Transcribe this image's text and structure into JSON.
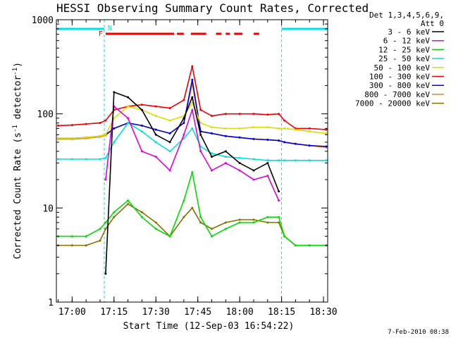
{
  "chart_data": {
    "type": "line",
    "title": "HESSI Observing Summary Count Rates, Corrected",
    "xlabel": "Start Time (12-Sep-03 16:54:22)",
    "ylabel": "Corrected Count Rate (s-1 detector-1)",
    "y_scale": "log",
    "ylim": [
      1,
      1000
    ],
    "x_range": [
      "16:54:22",
      "18:31:30"
    ],
    "x_ticks": [
      "17:00",
      "17:15",
      "17:30",
      "17:45",
      "18:00",
      "18:15",
      "18:30"
    ],
    "y_ticks": [
      "1",
      "10",
      "100",
      "1000"
    ],
    "grid": false,
    "legend_position": "right",
    "legend_header": [
      "Det 1,3,4,5,6,9,",
      "Att 0"
    ],
    "date_stamp": "7-Feb-2010 08:38",
    "flag_labels": {
      "flare": "F",
      "night": "N"
    },
    "flag_colors": {
      "flare": "#ee0000",
      "night": "#00e0e0"
    },
    "night_intervals": [
      [
        "16:54:22",
        "17:11:30"
      ],
      [
        "18:15:00",
        "18:31:30"
      ]
    ],
    "flare_intervals": [
      [
        "17:12:00",
        "17:36:30"
      ],
      [
        "17:37:30",
        "17:40:00"
      ],
      [
        "17:42:30",
        "17:48:00"
      ],
      [
        "17:51:30",
        "17:53:30"
      ],
      [
        "17:55:00",
        "17:56:30"
      ],
      [
        "17:58:00",
        "18:01:00"
      ],
      [
        "18:05:00",
        "18:07:00"
      ]
    ],
    "x": [
      "16:55",
      "17:00",
      "17:05",
      "17:10",
      "17:12",
      "17:15",
      "17:20",
      "17:25",
      "17:30",
      "17:35",
      "17:40",
      "17:43",
      "17:46",
      "17:50",
      "17:55",
      "18:00",
      "18:05",
      "18:10",
      "18:14",
      "18:16",
      "18:20",
      "18:25",
      "18:31"
    ],
    "series": [
      {
        "name": "3 - 6 keV",
        "color": "#000000",
        "values": [
          null,
          null,
          null,
          null,
          2,
          170,
          150,
          110,
          60,
          50,
          90,
          150,
          60,
          35,
          40,
          30,
          25,
          30,
          15,
          null,
          null,
          null,
          null
        ]
      },
      {
        "name": "6 - 12 keV",
        "color": "#e000e0",
        "values": [
          null,
          null,
          null,
          null,
          20,
          120,
          90,
          40,
          35,
          25,
          60,
          110,
          40,
          25,
          30,
          25,
          20,
          22,
          12,
          null,
          null,
          null,
          null
        ]
      },
      {
        "name": "12 - 25 keV",
        "color": "#00dd00",
        "values": [
          5,
          5,
          5,
          6,
          7,
          9,
          12,
          8,
          6,
          5,
          12,
          24,
          8,
          5,
          6,
          7,
          7,
          8,
          8,
          5,
          4,
          4,
          4
        ]
      },
      {
        "name": "25 - 50 keV",
        "color": "#00e0e0",
        "values": [
          33,
          33,
          33,
          33,
          34,
          50,
          80,
          65,
          50,
          40,
          55,
          70,
          45,
          38,
          35,
          34,
          33,
          32,
          32,
          32,
          32,
          32,
          32
        ]
      },
      {
        "name": "50 - 100 keV",
        "color": "#dddd00",
        "values": [
          55,
          55,
          56,
          58,
          60,
          90,
          120,
          110,
          95,
          85,
          95,
          130,
          80,
          72,
          70,
          70,
          72,
          72,
          70,
          70,
          68,
          65,
          62
        ]
      },
      {
        "name": "100 - 300 keV",
        "color": "#ee0000",
        "values": [
          75,
          76,
          78,
          80,
          85,
          110,
          120,
          125,
          120,
          115,
          140,
          320,
          110,
          95,
          100,
          100,
          100,
          98,
          100,
          85,
          70,
          70,
          68
        ]
      },
      {
        "name": "300 - 800 keV",
        "color": "#0000dd",
        "values": [
          55,
          55,
          56,
          58,
          60,
          70,
          80,
          75,
          68,
          62,
          80,
          230,
          65,
          62,
          58,
          56,
          54,
          53,
          52,
          50,
          48,
          46,
          45
        ]
      },
      {
        "name": "800 - 7000 keV",
        "color": "#ff8000",
        "values": [
          54,
          54,
          55,
          57,
          59,
          70,
          80,
          75,
          68,
          62,
          80,
          210,
          65,
          62,
          58,
          56,
          54,
          53,
          52,
          50,
          48,
          46,
          44
        ]
      },
      {
        "name": "7000 - 20000 keV",
        "color": "#807000",
        "values": [
          4,
          4,
          4,
          4.5,
          6,
          8,
          11,
          9,
          7,
          5,
          8,
          10,
          7,
          6,
          7,
          7.5,
          7.5,
          7,
          7,
          5,
          4,
          4,
          4
        ]
      }
    ]
  }
}
